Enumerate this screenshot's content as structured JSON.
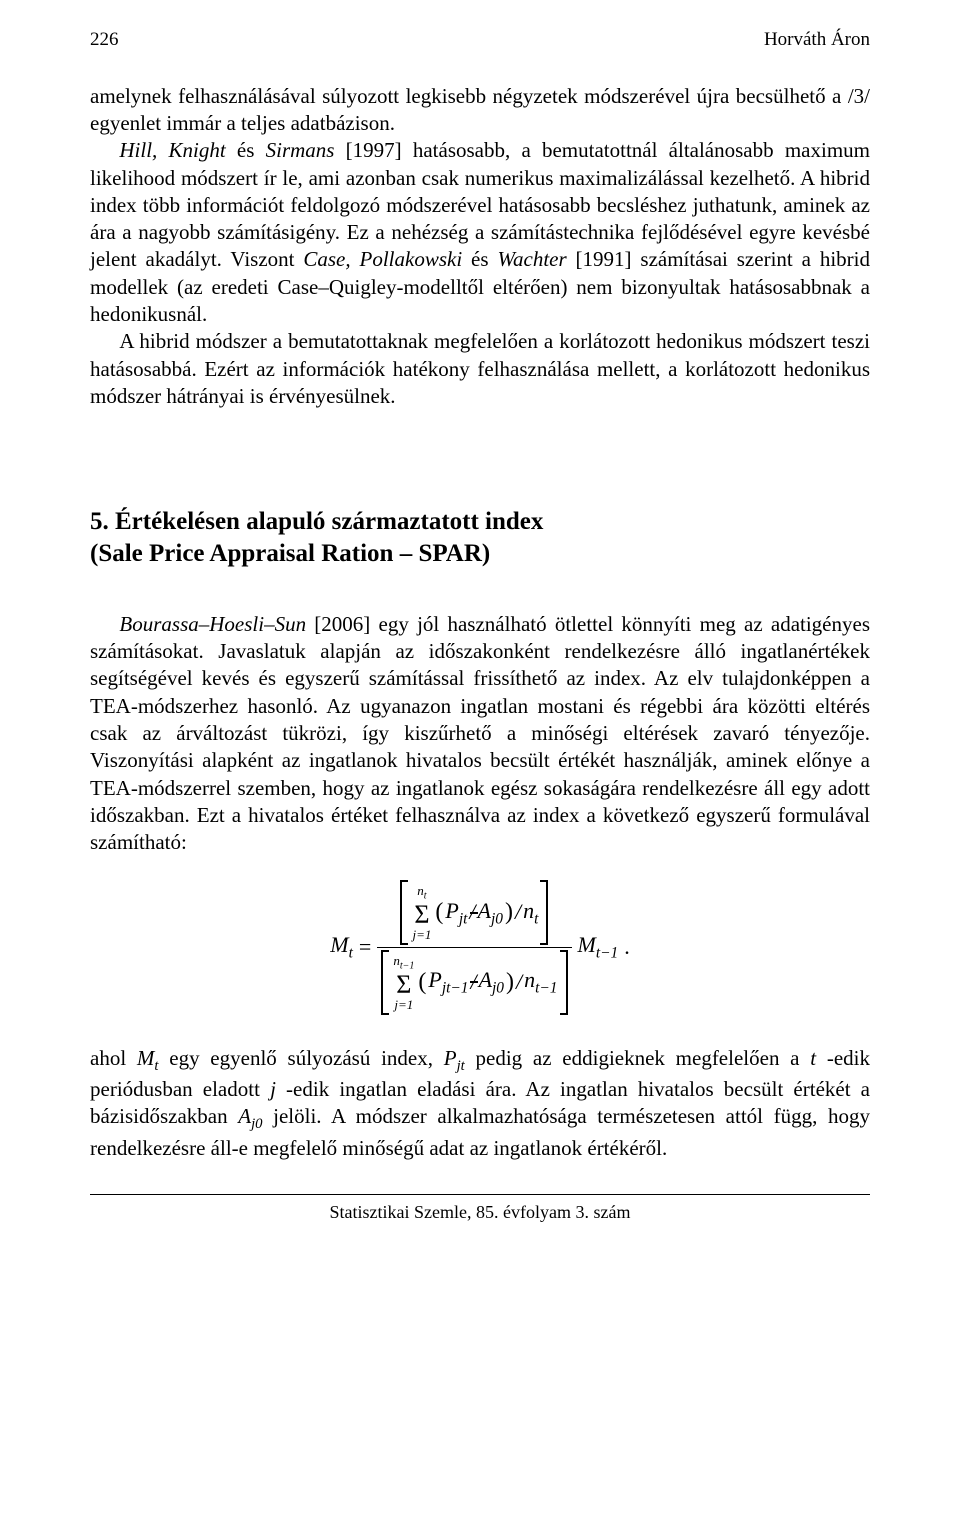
{
  "header": {
    "page_number": "226",
    "author": "Horváth Áron"
  },
  "para1_pre": "amelynek felhasználásával súlyozott legkisebb négyzetek módszerével újra becsülhető a /3/ egyenlet immár a teljes adatbázison.",
  "para2_a": "Hill, Knight",
  "para2_b": " és ",
  "para2_c": "Sirmans",
  "para2_d": " [1997] hatásosabb, a bemutatottnál általánosabb maximum likelihood módszert ír le, ami azonban csak numerikus maximalizálással kezelhető. A hibrid index több információt feldolgozó módszerével hatásosabb becsléshez juthatunk, aminek az ára a nagyobb számításigény. Ez a nehézség a számítástechnika fejlődésével egyre kevésbé jelent akadályt. Viszont ",
  "para2_e": "Case, Pollakowski",
  "para2_f": " és ",
  "para2_g": "Wachter",
  "para2_h": " [1991] számításai szerint a hibrid modellek (az eredeti Case–Quigley-modelltől eltérően) nem bizonyultak hatásosabbnak a hedonikusnál.",
  "para3": "A hibrid módszer a bemutatottaknak megfelelően a korlátozott hedonikus módszert teszi hatásosabbá. Ezért az információk hatékony felhasználása mellett, a korlátozott hedonikus módszer hátrányai is érvényesülnek.",
  "section_title_line1": "5. Értékelésen alapuló származtatott index",
  "section_title_line2": "(Sale Price Appraisal Ration – SPAR)",
  "para4_a": "Bourassa–Hoesli–Sun",
  "para4_b": " [2006] egy jól használható ötlettel könnyíti meg az adatigényes számításokat. Javaslatuk alapján az időszakonként rendelkezésre álló ingatlanértékek segítségével kevés és egyszerű számítással frissíthető az index. Az elv tulajdonképpen a TEA-módszerhez hasonló. Az ugyanazon ingatlan mostani és régebbi ára közötti eltérés csak az árváltozást tükrözi, így kiszűrhető a minőségi eltérések zavaró tényezője. Viszonyítási alapként az ingatlanok hivatalos becsült értékét használják, aminek előnye a TEA-módszerrel szemben, hogy az ingatlanok egész sokaságára rendelkezésre áll egy adott időszakban. Ezt a hivatalos értéket felhasználva az index a következő egyszerű formulával számítható:",
  "formula": {
    "lhs": "M",
    "lhs_sub": "t",
    "eq": " = ",
    "sum_upper_num": "n",
    "sum_upper_num_sub": "t",
    "sum_lower": "j=1",
    "num_inner_P": "P",
    "num_inner_P_sub": "jt",
    "slash": " / ",
    "A": "A",
    "A_sub": "j0",
    "n": "n",
    "n_sub_t": "t",
    "sum_upper_den": "n",
    "sum_upper_den_sub": "t−1",
    "den_inner_P_sub": "jt−1",
    "n_sub_tm1": "t−1",
    "rhs_M": "M",
    "rhs_M_sub": "t−1",
    "period": "."
  },
  "para5_a": "ahol ",
  "para5_b": "M",
  "para5_b_sub": "t",
  "para5_c": " egy egyenlő súlyozású index, ",
  "para5_d": "P",
  "para5_d_sub": "jt",
  "para5_e": " pedig az eddigieknek megfelelően a ",
  "para5_f": "t",
  "para5_g": " -edik periódusban eladott ",
  "para5_h": "j",
  "para5_i": " -edik ingatlan eladási ára. Az ingatlan hivatalos becsült értékét a bázisidőszakban ",
  "para5_j": "A",
  "para5_j_sub": "j0",
  "para5_k": " jelöli. A módszer alkalmazhatósága természetesen attól függ, hogy rendelkezésre áll-e megfelelő minőségű adat az ingatlanok értékéről.",
  "footer": "Statisztikai Szemle, 85. évfolyam 3. szám"
}
